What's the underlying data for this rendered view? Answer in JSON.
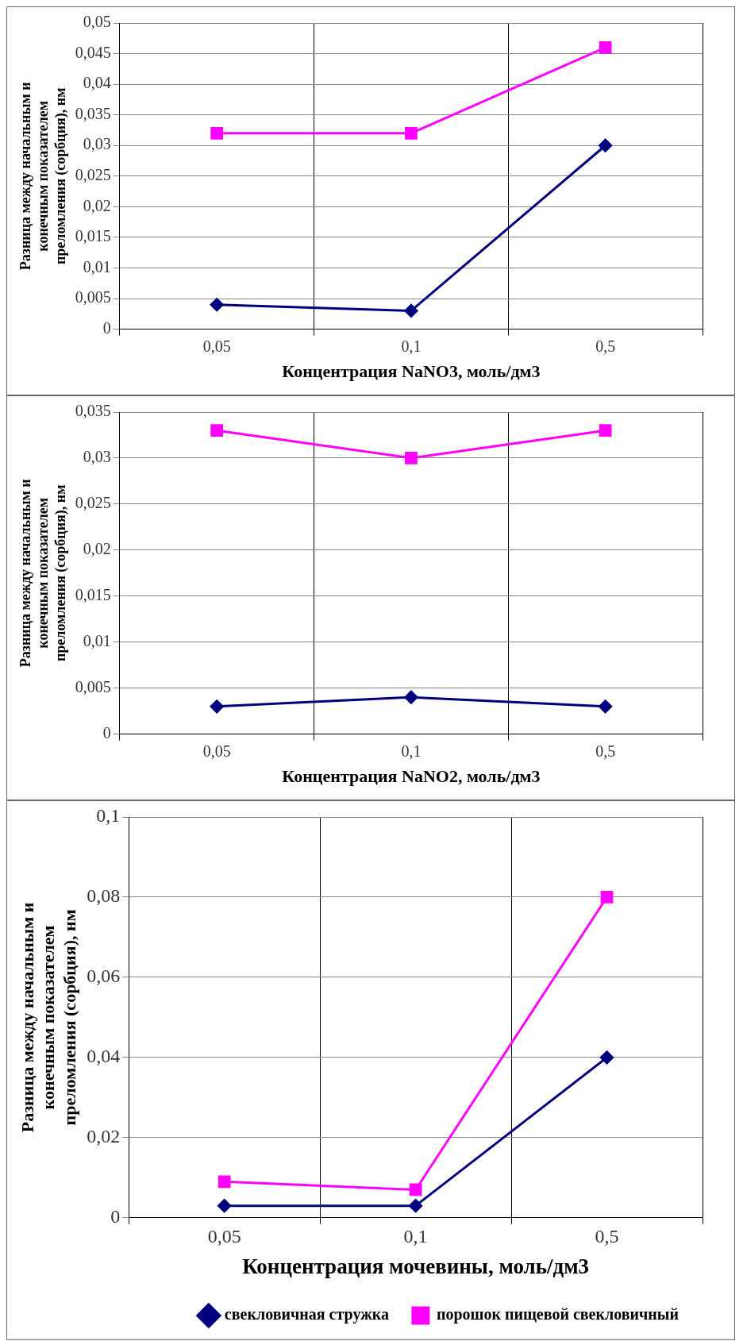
{
  "chart_data": [
    {
      "type": "line",
      "xlabel": "Концентрация NaNO3, моль/дм3",
      "ylabel": "Разница между начальным и\nконечным показателем\nпреломления (сорбция), нм",
      "categories": [
        "0,05",
        "0,1",
        "0,5"
      ],
      "series": [
        {
          "color": "#000080",
          "marker": "diamond",
          "values": [
            0.004,
            0.003,
            0.03
          ]
        },
        {
          "color": "#ff00ff",
          "marker": "square",
          "values": [
            0.032,
            0.032,
            0.046
          ]
        }
      ],
      "ylim": [
        0,
        0.05
      ],
      "yticks": [
        {
          "value": 0,
          "label": "0"
        },
        {
          "value": 0.005,
          "label": "0,005"
        },
        {
          "value": 0.01,
          "label": "0,01"
        },
        {
          "value": 0.015,
          "label": "0,015"
        },
        {
          "value": 0.02,
          "label": "0,02"
        },
        {
          "value": 0.025,
          "label": "0,025"
        },
        {
          "value": 0.03,
          "label": "0,03"
        },
        {
          "value": 0.035,
          "label": "0,035"
        },
        {
          "value": 0.04,
          "label": "0,04"
        },
        {
          "value": 0.045,
          "label": "0,045"
        },
        {
          "value": 0.05,
          "label": "0,05"
        }
      ],
      "grid": true,
      "legend": false
    },
    {
      "type": "line",
      "xlabel": "Концентрация NaNO2, моль/дм3",
      "ylabel": "Разница между начальным и\nконечным показателем\nпреломления (сорбция), нм",
      "categories": [
        "0,05",
        "0,1",
        "0,5"
      ],
      "series": [
        {
          "color": "#000080",
          "marker": "diamond",
          "values": [
            0.003,
            0.004,
            0.003
          ]
        },
        {
          "color": "#ff00ff",
          "marker": "square",
          "values": [
            0.033,
            0.03,
            0.033
          ]
        }
      ],
      "ylim": [
        0,
        0.035
      ],
      "yticks": [
        {
          "value": 0,
          "label": "0"
        },
        {
          "value": 0.005,
          "label": "0,005"
        },
        {
          "value": 0.01,
          "label": "0,01"
        },
        {
          "value": 0.015,
          "label": "0,015"
        },
        {
          "value": 0.02,
          "label": "0,02"
        },
        {
          "value": 0.025,
          "label": "0,025"
        },
        {
          "value": 0.03,
          "label": "0,03"
        },
        {
          "value": 0.035,
          "label": "0,035"
        }
      ],
      "grid": true,
      "legend": false
    },
    {
      "type": "line",
      "xlabel": "Концентрация мочевины, моль/дм3",
      "ylabel": "Разница между начальным и\nконечным показателем\nпреломления (сорбция), нм",
      "categories": [
        "0,05",
        "0,1",
        "0,5"
      ],
      "series": [
        {
          "name": "свекловичная стружка",
          "color": "#000080",
          "marker": "diamond",
          "values": [
            0.003,
            0.003,
            0.04
          ]
        },
        {
          "name": "порошок пищевой свекловичный",
          "color": "#ff00ff",
          "marker": "square",
          "values": [
            0.009,
            0.007,
            0.08
          ]
        }
      ],
      "ylim": [
        0,
        0.1
      ],
      "yticks": [
        {
          "value": 0,
          "label": "0"
        },
        {
          "value": 0.02,
          "label": "0,02"
        },
        {
          "value": 0.04,
          "label": "0,04"
        },
        {
          "value": 0.06,
          "label": "0,06"
        },
        {
          "value": 0.08,
          "label": "0,08"
        },
        {
          "value": 0.1,
          "label": "0,1"
        }
      ],
      "grid": true,
      "legend": "bottom"
    }
  ]
}
